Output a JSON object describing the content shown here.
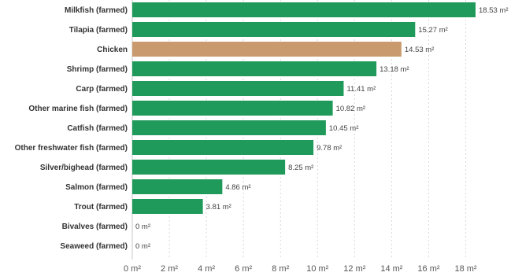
{
  "chart_data": {
    "type": "bar",
    "orientation": "horizontal",
    "categories": [
      "Milkfish (farmed)",
      "Tilapia (farmed)",
      "Chicken",
      "Shrimp (farmed)",
      "Carp (farmed)",
      "Other marine fish (farmed)",
      "Catfish (farmed)",
      "Other freshwater fish (farmed)",
      "Silver/bighead (farmed)",
      "Salmon (farmed)",
      "Trout (farmed)",
      "Bivalves (farmed)",
      "Seaweed (farmed)"
    ],
    "values": [
      18.53,
      15.27,
      14.53,
      13.18,
      11.41,
      10.82,
      10.45,
      9.78,
      8.25,
      4.86,
      3.81,
      0,
      0
    ],
    "value_labels": [
      "18.53 m²",
      "15.27 m²",
      "14.53 m²",
      "13.18 m²",
      "11.41 m²",
      "10.82 m²",
      "10.45 m²",
      "9.78 m²",
      "8.25 m²",
      "4.86 m²",
      "3.81 m²",
      "0 m²",
      "0 m²"
    ],
    "bar_colors": [
      "#1f9a5a",
      "#1f9a5a",
      "#c99a6e",
      "#1f9a5a",
      "#1f9a5a",
      "#1f9a5a",
      "#1f9a5a",
      "#1f9a5a",
      "#1f9a5a",
      "#1f9a5a",
      "#1f9a5a",
      "#1f9a5a",
      "#1f9a5a"
    ],
    "x_ticks": [
      0,
      2,
      4,
      6,
      8,
      10,
      12,
      14,
      16,
      18
    ],
    "x_tick_labels": [
      "0 m²",
      "2 m²",
      "4 m²",
      "6 m²",
      "8 m²",
      "10 m²",
      "12 m²",
      "14 m²",
      "16 m²",
      "18 m²"
    ],
    "xlim": [
      0,
      18.53
    ],
    "grid": true
  }
}
